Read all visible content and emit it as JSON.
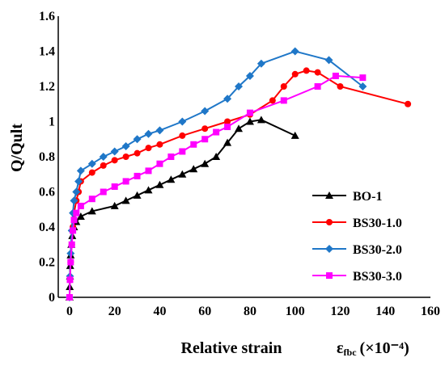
{
  "chart_data": {
    "type": "line",
    "title": "",
    "xlabel": "Relative strain",
    "xlabel_symbol": "ε",
    "xlabel_subscript": "fbc",
    "xlabel_unit": "(×10⁻⁴)",
    "ylabel": "Q/Qult",
    "xlim": [
      -5,
      160
    ],
    "ylim": [
      0,
      1.6
    ],
    "xticks": [
      "0",
      "20",
      "40",
      "60",
      "80",
      "100",
      "120",
      "140",
      "160"
    ],
    "yticks": [
      "0",
      "0.2",
      "0.4",
      "0.6",
      "0.8",
      "1",
      "1.2",
      "1.4",
      "1.6"
    ],
    "grid": false,
    "legend_position": "right-center",
    "series": [
      {
        "name": "BO-1",
        "color": "#000000",
        "marker": "triangle",
        "x": [
          0,
          0.1,
          0.2,
          0.3,
          0.5,
          0.8,
          1.2,
          2,
          3,
          5,
          10,
          20,
          25,
          30,
          35,
          40,
          45,
          50,
          55,
          60,
          65,
          70,
          75,
          80,
          85,
          100
        ],
        "y": [
          0,
          0.06,
          0.12,
          0.18,
          0.24,
          0.3,
          0.35,
          0.4,
          0.43,
          0.46,
          0.49,
          0.52,
          0.55,
          0.58,
          0.61,
          0.64,
          0.67,
          0.7,
          0.73,
          0.76,
          0.8,
          0.88,
          0.96,
          1.0,
          1.01,
          0.92
        ]
      },
      {
        "name": "BS30-1.0",
        "color": "#ff0000",
        "marker": "circle",
        "x": [
          0,
          0.2,
          0.5,
          1,
          1.5,
          2,
          3,
          4,
          5,
          10,
          15,
          20,
          25,
          30,
          35,
          40,
          50,
          60,
          70,
          80,
          90,
          95,
          100,
          105,
          110,
          120,
          150
        ],
        "y": [
          0,
          0.1,
          0.2,
          0.3,
          0.4,
          0.48,
          0.55,
          0.6,
          0.66,
          0.71,
          0.75,
          0.78,
          0.8,
          0.82,
          0.85,
          0.87,
          0.92,
          0.96,
          1.0,
          1.04,
          1.12,
          1.2,
          1.27,
          1.29,
          1.28,
          1.2,
          1.1
        ]
      },
      {
        "name": "BS30-2.0",
        "color": "#1f77c8",
        "marker": "diamond",
        "x": [
          0,
          0.2,
          0.5,
          1,
          1.5,
          2,
          3,
          4,
          5,
          10,
          15,
          20,
          25,
          30,
          35,
          40,
          50,
          60,
          70,
          75,
          80,
          85,
          100,
          115,
          130
        ],
        "y": [
          0,
          0.12,
          0.25,
          0.38,
          0.48,
          0.55,
          0.6,
          0.66,
          0.72,
          0.76,
          0.8,
          0.83,
          0.86,
          0.9,
          0.93,
          0.95,
          1.0,
          1.06,
          1.13,
          1.2,
          1.26,
          1.33,
          1.4,
          1.35,
          1.2
        ]
      },
      {
        "name": "BS30-3.0",
        "color": "#ff00ff",
        "marker": "square",
        "x": [
          0,
          0.2,
          0.5,
          1,
          1.5,
          2,
          3,
          5,
          10,
          15,
          20,
          25,
          30,
          35,
          40,
          45,
          50,
          55,
          60,
          65,
          70,
          80,
          95,
          110,
          118,
          130
        ],
        "y": [
          0,
          0.1,
          0.2,
          0.3,
          0.38,
          0.44,
          0.48,
          0.52,
          0.56,
          0.6,
          0.63,
          0.66,
          0.69,
          0.72,
          0.76,
          0.8,
          0.83,
          0.87,
          0.9,
          0.94,
          0.97,
          1.05,
          1.12,
          1.2,
          1.26,
          1.25
        ]
      }
    ]
  }
}
